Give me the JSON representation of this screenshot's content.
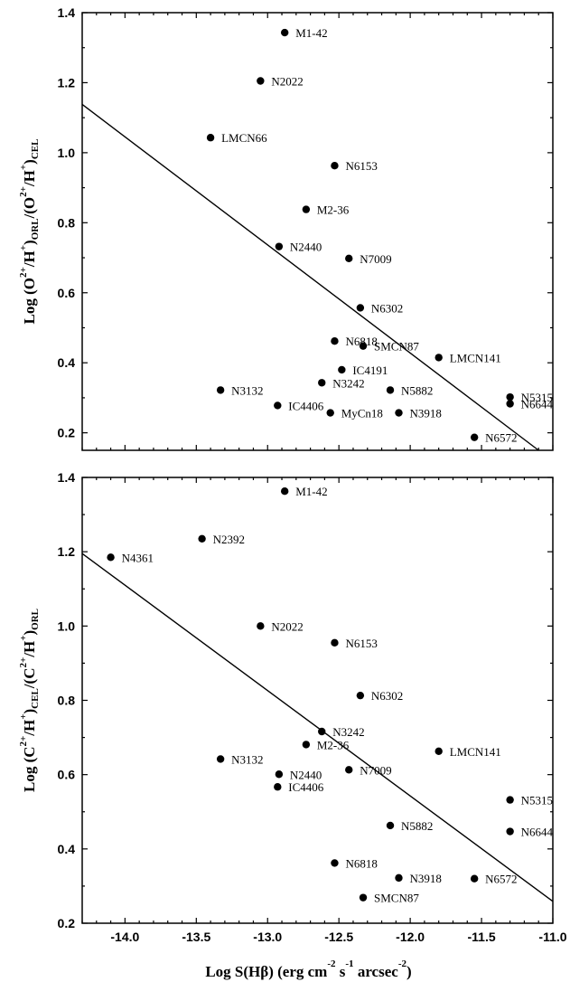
{
  "chart_data": [
    {
      "type": "scatter",
      "xlim": [
        -14.3,
        -11.0
      ],
      "ylim": [
        0.15,
        1.4
      ],
      "yticks": [
        "0.2",
        "0.4",
        "0.6",
        "0.8",
        "1.0",
        "1.2",
        "1.4"
      ],
      "ylabel": {
        "main": "Log (O",
        "sup1": "2+",
        "mid1": "/H",
        "sup2": "+",
        "mid2": ")",
        "sub1": "ORL",
        "mid3": "/(O",
        "sup3": "2+",
        "mid4": "/H",
        "sup4": "+",
        "mid5": ")",
        "sub2": "CEL"
      },
      "points": [
        {
          "label": "M1-42",
          "x": -12.88,
          "y": 1.343
        },
        {
          "label": "N2022",
          "x": -13.05,
          "y": 1.205
        },
        {
          "label": "LMCN66",
          "x": -13.4,
          "y": 1.043
        },
        {
          "label": "N6153",
          "x": -12.53,
          "y": 0.963
        },
        {
          "label": "M2-36",
          "x": -12.73,
          "y": 0.838
        },
        {
          "label": "N2440",
          "x": -12.92,
          "y": 0.732
        },
        {
          "label": "N7009",
          "x": -12.43,
          "y": 0.698
        },
        {
          "label": "N6302",
          "x": -12.35,
          "y": 0.557
        },
        {
          "label": "N6818",
          "x": -12.53,
          "y": 0.462
        },
        {
          "label": "SMCN87",
          "x": -12.33,
          "y": 0.448
        },
        {
          "label": "LMCN141",
          "x": -11.8,
          "y": 0.415
        },
        {
          "label": "IC4191",
          "x": -12.48,
          "y": 0.38
        },
        {
          "label": "N3242",
          "x": -12.62,
          "y": 0.343
        },
        {
          "label": "N3132",
          "x": -13.33,
          "y": 0.322
        },
        {
          "label": "N5882",
          "x": -12.14,
          "y": 0.322
        },
        {
          "label": "IC4406",
          "x": -12.93,
          "y": 0.278
        },
        {
          "label": "MyCn18",
          "x": -12.56,
          "y": 0.257
        },
        {
          "label": "N3918",
          "x": -12.08,
          "y": 0.257
        },
        {
          "label": "N5315",
          "x": -11.3,
          "y": 0.302
        },
        {
          "label": "N6644",
          "x": -11.3,
          "y": 0.283
        },
        {
          "label": "N6572",
          "x": -11.55,
          "y": 0.187
        }
      ],
      "fit_line": {
        "x": [
          -14.3,
          -11.1
        ],
        "y": [
          1.138,
          0.15
        ]
      }
    },
    {
      "type": "scatter",
      "xlim": [
        -14.3,
        -11.0
      ],
      "ylim": [
        0.2,
        1.4
      ],
      "xticks": [
        "-14.0",
        "-13.5",
        "-13.0",
        "-12.5",
        "-12.0",
        "-11.5",
        "-11.0"
      ],
      "yticks": [
        "0.2",
        "0.4",
        "0.6",
        "0.8",
        "1.0",
        "1.2",
        "1.4"
      ],
      "xlabel": {
        "main": "Log S(Hβ) (erg cm",
        "sup1": "-2",
        "mid1": " s",
        "sup2": "-1",
        "mid2": " arcsec",
        "sup3": "-2",
        "mid3": ")"
      },
      "ylabel": {
        "main": "Log (C",
        "sup1": "2+",
        "mid1": "/H",
        "sup2": "+",
        "mid2": ")",
        "sub1": "CEL",
        "mid3": "/(C",
        "sup3": "2+",
        "mid4": "/H",
        "sup4": "+",
        "mid5": ")",
        "sub2": "ORL"
      },
      "points": [
        {
          "label": "M1-42",
          "x": -12.88,
          "y": 1.363
        },
        {
          "label": "N2392",
          "x": -13.46,
          "y": 1.235
        },
        {
          "label": "N4361",
          "x": -14.1,
          "y": 1.185
        },
        {
          "label": "N2022",
          "x": -13.05,
          "y": 1.0
        },
        {
          "label": "N6153",
          "x": -12.53,
          "y": 0.955
        },
        {
          "label": "N6302",
          "x": -12.35,
          "y": 0.813
        },
        {
          "label": "N3242",
          "x": -12.62,
          "y": 0.716
        },
        {
          "label": "M2-36",
          "x": -12.73,
          "y": 0.681
        },
        {
          "label": "LMCN141",
          "x": -11.8,
          "y": 0.663
        },
        {
          "label": "N3132",
          "x": -13.33,
          "y": 0.642
        },
        {
          "label": "N7009",
          "x": -12.43,
          "y": 0.613
        },
        {
          "label": "N2440",
          "x": -12.92,
          "y": 0.601
        },
        {
          "label": "IC4406",
          "x": -12.93,
          "y": 0.567
        },
        {
          "label": "N5315",
          "x": -11.3,
          "y": 0.532
        },
        {
          "label": "N5882",
          "x": -12.14,
          "y": 0.463
        },
        {
          "label": "N6644",
          "x": -11.3,
          "y": 0.447
        },
        {
          "label": "N6818",
          "x": -12.53,
          "y": 0.362
        },
        {
          "label": "N3918",
          "x": -12.08,
          "y": 0.322
        },
        {
          "label": "N6572",
          "x": -11.55,
          "y": 0.32
        },
        {
          "label": "SMCN87",
          "x": -12.33,
          "y": 0.269
        }
      ],
      "fit_line": {
        "x": [
          -14.3,
          -11.0
        ],
        "y": [
          1.195,
          0.259
        ]
      }
    }
  ]
}
